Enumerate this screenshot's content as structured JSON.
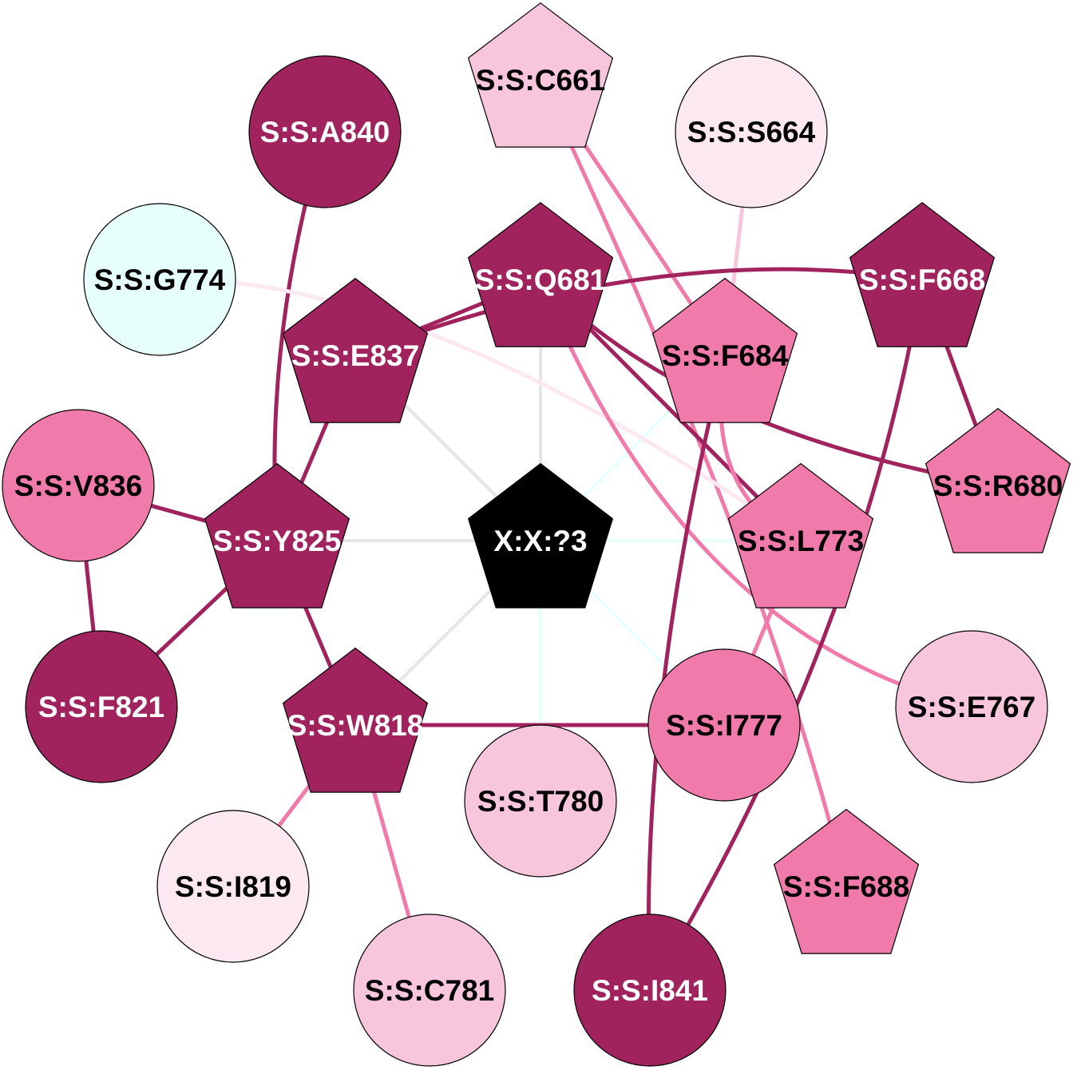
{
  "colors": {
    "dark": "#A0235E",
    "medium": "#F07AAA",
    "light": "#F8C6DC",
    "pale": "#FCE8F1",
    "cyan": "#E6FFFD",
    "black": "#000000",
    "edge_grey": "#E6E6E6",
    "edge_cyan": "#E6FFFD"
  },
  "nodes": [
    {
      "id": "X:X:?3",
      "label": "X:X:?3",
      "shape": "pentagon",
      "fill": "black",
      "text": "white"
    },
    {
      "id": "S:S:C661",
      "label": "S:S:C661",
      "shape": "pentagon",
      "fill": "light",
      "text": "black"
    },
    {
      "id": "S:S:S664",
      "label": "S:S:S664",
      "shape": "circle",
      "fill": "pale",
      "text": "black"
    },
    {
      "id": "S:S:A840",
      "label": "S:S:A840",
      "shape": "circle",
      "fill": "dark",
      "text": "white"
    },
    {
      "id": "S:S:G774",
      "label": "S:S:G774",
      "shape": "circle",
      "fill": "cyan",
      "text": "black"
    },
    {
      "id": "S:S:Q681",
      "label": "S:S:Q681",
      "shape": "pentagon",
      "fill": "dark",
      "text": "white"
    },
    {
      "id": "S:S:F668",
      "label": "S:S:F668",
      "shape": "pentagon",
      "fill": "dark",
      "text": "white"
    },
    {
      "id": "S:S:E837",
      "label": "S:S:E837",
      "shape": "pentagon",
      "fill": "dark",
      "text": "white"
    },
    {
      "id": "S:S:F684",
      "label": "S:S:F684",
      "shape": "pentagon",
      "fill": "medium",
      "text": "black"
    },
    {
      "id": "S:S:V836",
      "label": "S:S:V836",
      "shape": "circle",
      "fill": "medium",
      "text": "black"
    },
    {
      "id": "S:S:R680",
      "label": "S:S:R680",
      "shape": "pentagon",
      "fill": "medium",
      "text": "black"
    },
    {
      "id": "S:S:Y825",
      "label": "S:S:Y825",
      "shape": "pentagon",
      "fill": "dark",
      "text": "white"
    },
    {
      "id": "S:S:L773",
      "label": "S:S:L773",
      "shape": "pentagon",
      "fill": "medium",
      "text": "black"
    },
    {
      "id": "S:S:F821",
      "label": "S:S:F821",
      "shape": "circle",
      "fill": "dark",
      "text": "white"
    },
    {
      "id": "S:S:E767",
      "label": "S:S:E767",
      "shape": "circle",
      "fill": "light",
      "text": "black"
    },
    {
      "id": "S:S:W818",
      "label": "S:S:W818",
      "shape": "pentagon",
      "fill": "dark",
      "text": "white"
    },
    {
      "id": "S:S:I777",
      "label": "S:S:I777",
      "shape": "circle",
      "fill": "medium",
      "text": "black"
    },
    {
      "id": "S:S:T780",
      "label": "S:S:T780",
      "shape": "circle",
      "fill": "light",
      "text": "black"
    },
    {
      "id": "S:S:I819",
      "label": "S:S:I819",
      "shape": "circle",
      "fill": "pale",
      "text": "black"
    },
    {
      "id": "S:S:F688",
      "label": "S:S:F688",
      "shape": "pentagon",
      "fill": "medium",
      "text": "black"
    },
    {
      "id": "S:S:C781",
      "label": "S:S:C781",
      "shape": "circle",
      "fill": "light",
      "text": "black"
    },
    {
      "id": "S:S:I841",
      "label": "S:S:I841",
      "shape": "circle",
      "fill": "dark",
      "text": "white"
    }
  ],
  "edges": [
    {
      "source": "X:X:?3",
      "target": "S:S:Q681",
      "color": "edge_grey",
      "kind": "hub"
    },
    {
      "source": "X:X:?3",
      "target": "S:S:E837",
      "color": "edge_grey",
      "kind": "hub"
    },
    {
      "source": "X:X:?3",
      "target": "S:S:Y825",
      "color": "edge_grey",
      "kind": "hub"
    },
    {
      "source": "X:X:?3",
      "target": "S:S:W818",
      "color": "edge_grey",
      "kind": "hub"
    },
    {
      "source": "X:X:?3",
      "target": "S:S:F684",
      "color": "edge_cyan",
      "kind": "hub"
    },
    {
      "source": "X:X:?3",
      "target": "S:S:L773",
      "color": "edge_cyan",
      "kind": "hub"
    },
    {
      "source": "X:X:?3",
      "target": "S:S:I777",
      "color": "edge_cyan",
      "kind": "hub"
    },
    {
      "source": "X:X:?3",
      "target": "S:S:T780",
      "color": "edge_cyan",
      "kind": "hub"
    },
    {
      "source": "S:S:C661",
      "target": "S:S:F684",
      "color": "medium"
    },
    {
      "source": "S:S:C661",
      "target": "S:S:F688",
      "color": "medium"
    },
    {
      "source": "S:S:S664",
      "target": "S:S:F684",
      "color": "light"
    },
    {
      "source": "S:S:A840",
      "target": "S:S:Y825",
      "color": "dark"
    },
    {
      "source": "S:S:G774",
      "target": "S:S:L773",
      "color": "pale"
    },
    {
      "source": "S:S:Q681",
      "target": "S:S:E837",
      "color": "dark"
    },
    {
      "source": "S:S:Q681",
      "target": "S:S:L773",
      "color": "dark"
    },
    {
      "source": "S:S:Q681",
      "target": "S:S:R680",
      "color": "dark"
    },
    {
      "source": "S:S:Q681",
      "target": "S:S:E767",
      "color": "medium"
    },
    {
      "source": "S:S:F668",
      "target": "S:S:E837",
      "color": "dark"
    },
    {
      "source": "S:S:F668",
      "target": "S:S:R680",
      "color": "dark"
    },
    {
      "source": "S:S:F668",
      "target": "S:S:I841",
      "color": "dark"
    },
    {
      "source": "S:S:E837",
      "target": "S:S:Y825",
      "color": "dark"
    },
    {
      "source": "S:S:F684",
      "target": "S:S:I841",
      "color": "dark"
    },
    {
      "source": "S:S:F684",
      "target": "S:S:L773",
      "color": "medium"
    },
    {
      "source": "S:S:V836",
      "target": "S:S:Y825",
      "color": "dark"
    },
    {
      "source": "S:S:V836",
      "target": "S:S:F821",
      "color": "dark"
    },
    {
      "source": "S:S:Y825",
      "target": "S:S:F821",
      "color": "dark"
    },
    {
      "source": "S:S:Y825",
      "target": "S:S:W818",
      "color": "dark"
    },
    {
      "source": "S:S:L773",
      "target": "S:S:I777",
      "color": "medium"
    },
    {
      "source": "S:S:W818",
      "target": "S:S:I777",
      "color": "dark"
    },
    {
      "source": "S:S:W818",
      "target": "S:S:I819",
      "color": "medium"
    },
    {
      "source": "S:S:W818",
      "target": "S:S:C781",
      "color": "medium"
    }
  ]
}
